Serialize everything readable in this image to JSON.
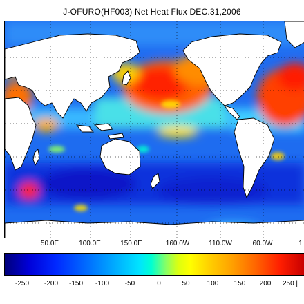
{
  "figure": {
    "title": "J-OFURO(HF003) Net Heat Flux DEC.31,2006"
  },
  "map": {
    "type": "global-heat-flux-map",
    "longitude_labels": [
      "50.0E",
      "100.0E",
      "150.0E",
      "160.0W",
      "110.0W",
      "60.0W",
      "1"
    ],
    "grid": "dotted lat/lon lines",
    "land_color": "#ffffff",
    "coastline_color": "#000000"
  },
  "colorbar": {
    "tick_labels": [
      "-250",
      "-200",
      "-150",
      "-100",
      "-50",
      "0",
      "50",
      "100",
      "150",
      "200",
      "250 |"
    ],
    "range": [
      -300,
      300
    ],
    "low_color": "#00007a",
    "zero_color": "#00ffd2",
    "high_color": "#c80000"
  }
}
